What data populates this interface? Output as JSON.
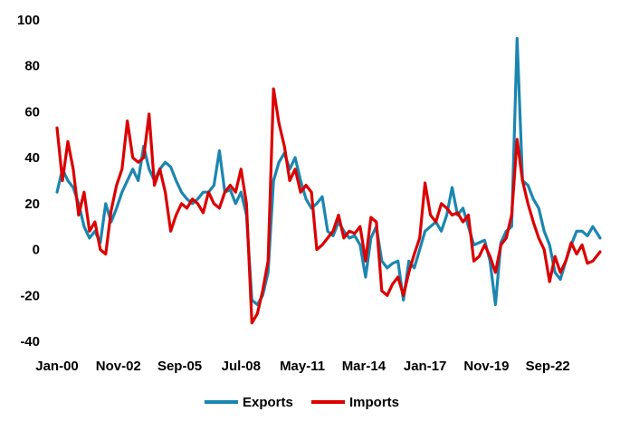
{
  "chart_data": {
    "type": "line",
    "title": "",
    "xlabel": "",
    "ylabel": "",
    "ylim": [
      -40,
      100
    ],
    "yticks": [
      -40,
      -20,
      0,
      20,
      40,
      60,
      80,
      100
    ],
    "x_start": "2000-01",
    "x_end": "2025-02",
    "xtick_labels": [
      "Jan-00",
      "Nov-02",
      "Sep-05",
      "Jul-08",
      "May-11",
      "Mar-14",
      "Jan-17",
      "Nov-19",
      "Sep-22"
    ],
    "grid": false,
    "legend_position": "bottom",
    "series": [
      {
        "name": "Exports",
        "color": "#1a86b0",
        "points": [
          [
            "2000-01",
            25
          ],
          [
            "2000-04",
            35
          ],
          [
            "2000-07",
            30
          ],
          [
            "2000-10",
            27
          ],
          [
            "2001-01",
            20
          ],
          [
            "2001-04",
            10
          ],
          [
            "2001-07",
            5
          ],
          [
            "2001-10",
            8
          ],
          [
            "2002-01",
            3
          ],
          [
            "2002-04",
            20
          ],
          [
            "2002-07",
            12
          ],
          [
            "2002-10",
            18
          ],
          [
            "2003-01",
            25
          ],
          [
            "2003-04",
            30
          ],
          [
            "2003-07",
            35
          ],
          [
            "2003-10",
            30
          ],
          [
            "2004-01",
            45
          ],
          [
            "2004-04",
            35
          ],
          [
            "2004-07",
            30
          ],
          [
            "2004-10",
            35
          ],
          [
            "2005-01",
            38
          ],
          [
            "2005-04",
            36
          ],
          [
            "2005-07",
            30
          ],
          [
            "2005-10",
            25
          ],
          [
            "2006-01",
            22
          ],
          [
            "2006-04",
            20
          ],
          [
            "2006-07",
            22
          ],
          [
            "2006-10",
            25
          ],
          [
            "2007-01",
            25
          ],
          [
            "2007-04",
            28
          ],
          [
            "2007-07",
            43
          ],
          [
            "2007-10",
            25
          ],
          [
            "2008-01",
            26
          ],
          [
            "2008-04",
            20
          ],
          [
            "2008-07",
            25
          ],
          [
            "2008-10",
            15
          ],
          [
            "2009-01",
            -22
          ],
          [
            "2009-04",
            -24
          ],
          [
            "2009-07",
            -20
          ],
          [
            "2009-10",
            -10
          ],
          [
            "2010-01",
            30
          ],
          [
            "2010-04",
            38
          ],
          [
            "2010-07",
            42
          ],
          [
            "2010-10",
            35
          ],
          [
            "2011-01",
            40
          ],
          [
            "2011-04",
            30
          ],
          [
            "2011-07",
            22
          ],
          [
            "2011-10",
            18
          ],
          [
            "2012-01",
            20
          ],
          [
            "2012-04",
            23
          ],
          [
            "2012-07",
            8
          ],
          [
            "2012-10",
            6
          ],
          [
            "2013-01",
            12
          ],
          [
            "2013-04",
            8
          ],
          [
            "2013-07",
            5
          ],
          [
            "2013-10",
            6
          ],
          [
            "2014-01",
            2
          ],
          [
            "2014-04",
            -12
          ],
          [
            "2014-07",
            5
          ],
          [
            "2014-10",
            10
          ],
          [
            "2015-01",
            -5
          ],
          [
            "2015-04",
            -8
          ],
          [
            "2015-07",
            -6
          ],
          [
            "2015-10",
            -5
          ],
          [
            "2016-01",
            -22
          ],
          [
            "2016-04",
            -5
          ],
          [
            "2016-07",
            -8
          ],
          [
            "2016-10",
            0
          ],
          [
            "2017-01",
            8
          ],
          [
            "2017-04",
            10
          ],
          [
            "2017-07",
            12
          ],
          [
            "2017-10",
            8
          ],
          [
            "2018-01",
            15
          ],
          [
            "2018-04",
            27
          ],
          [
            "2018-07",
            15
          ],
          [
            "2018-10",
            18
          ],
          [
            "2019-01",
            10
          ],
          [
            "2019-04",
            2
          ],
          [
            "2019-07",
            3
          ],
          [
            "2019-10",
            4
          ],
          [
            "2020-01",
            -5
          ],
          [
            "2020-04",
            -24
          ],
          [
            "2020-07",
            3
          ],
          [
            "2020-10",
            8
          ],
          [
            "2021-01",
            10
          ],
          [
            "2021-04",
            92
          ],
          [
            "2021-07",
            30
          ],
          [
            "2021-10",
            28
          ],
          [
            "2022-01",
            22
          ],
          [
            "2022-04",
            18
          ],
          [
            "2022-07",
            8
          ],
          [
            "2022-10",
            2
          ],
          [
            "2023-01",
            -10
          ],
          [
            "2023-04",
            -13
          ],
          [
            "2023-07",
            -5
          ],
          [
            "2023-10",
            2
          ],
          [
            "2024-01",
            8
          ],
          [
            "2024-04",
            8
          ],
          [
            "2024-07",
            6
          ],
          [
            "2024-10",
            10
          ],
          [
            "2025-02",
            5
          ]
        ]
      },
      {
        "name": "Imports",
        "color": "#dc0000",
        "points": [
          [
            "2000-01",
            53
          ],
          [
            "2000-04",
            30
          ],
          [
            "2000-07",
            47
          ],
          [
            "2000-10",
            35
          ],
          [
            "2001-01",
            15
          ],
          [
            "2001-04",
            25
          ],
          [
            "2001-07",
            8
          ],
          [
            "2001-10",
            12
          ],
          [
            "2002-01",
            0
          ],
          [
            "2002-04",
            -2
          ],
          [
            "2002-07",
            17
          ],
          [
            "2002-10",
            28
          ],
          [
            "2003-01",
            35
          ],
          [
            "2003-04",
            56
          ],
          [
            "2003-07",
            40
          ],
          [
            "2003-10",
            38
          ],
          [
            "2004-01",
            40
          ],
          [
            "2004-04",
            59
          ],
          [
            "2004-07",
            28
          ],
          [
            "2004-10",
            35
          ],
          [
            "2005-01",
            25
          ],
          [
            "2005-04",
            8
          ],
          [
            "2005-07",
            15
          ],
          [
            "2005-10",
            20
          ],
          [
            "2006-01",
            18
          ],
          [
            "2006-04",
            22
          ],
          [
            "2006-07",
            20
          ],
          [
            "2006-10",
            16
          ],
          [
            "2007-01",
            25
          ],
          [
            "2007-04",
            20
          ],
          [
            "2007-07",
            18
          ],
          [
            "2007-10",
            25
          ],
          [
            "2008-01",
            28
          ],
          [
            "2008-04",
            25
          ],
          [
            "2008-07",
            35
          ],
          [
            "2008-10",
            20
          ],
          [
            "2009-01",
            -32
          ],
          [
            "2009-04",
            -28
          ],
          [
            "2009-07",
            -18
          ],
          [
            "2009-10",
            -5
          ],
          [
            "2010-01",
            70
          ],
          [
            "2010-04",
            55
          ],
          [
            "2010-07",
            45
          ],
          [
            "2010-10",
            30
          ],
          [
            "2011-01",
            35
          ],
          [
            "2011-04",
            25
          ],
          [
            "2011-07",
            28
          ],
          [
            "2011-10",
            25
          ],
          [
            "2012-01",
            0
          ],
          [
            "2012-04",
            2
          ],
          [
            "2012-07",
            5
          ],
          [
            "2012-10",
            8
          ],
          [
            "2013-01",
            15
          ],
          [
            "2013-04",
            5
          ],
          [
            "2013-07",
            8
          ],
          [
            "2013-10",
            7
          ],
          [
            "2014-01",
            10
          ],
          [
            "2014-04",
            -5
          ],
          [
            "2014-07",
            14
          ],
          [
            "2014-10",
            12
          ],
          [
            "2015-01",
            -18
          ],
          [
            "2015-04",
            -20
          ],
          [
            "2015-07",
            -15
          ],
          [
            "2015-10",
            -12
          ],
          [
            "2016-01",
            -20
          ],
          [
            "2016-04",
            -10
          ],
          [
            "2016-07",
            -2
          ],
          [
            "2016-10",
            5
          ],
          [
            "2017-01",
            29
          ],
          [
            "2017-04",
            15
          ],
          [
            "2017-07",
            12
          ],
          [
            "2017-10",
            20
          ],
          [
            "2018-01",
            18
          ],
          [
            "2018-04",
            15
          ],
          [
            "2018-07",
            16
          ],
          [
            "2018-10",
            12
          ],
          [
            "2019-01",
            15
          ],
          [
            "2019-04",
            -5
          ],
          [
            "2019-07",
            -3
          ],
          [
            "2019-10",
            2
          ],
          [
            "2020-01",
            -3
          ],
          [
            "2020-04",
            -10
          ],
          [
            "2020-07",
            2
          ],
          [
            "2020-10",
            5
          ],
          [
            "2021-01",
            15
          ],
          [
            "2021-04",
            48
          ],
          [
            "2021-07",
            30
          ],
          [
            "2021-10",
            20
          ],
          [
            "2022-01",
            12
          ],
          [
            "2022-04",
            5
          ],
          [
            "2022-07",
            0
          ],
          [
            "2022-10",
            -14
          ],
          [
            "2023-01",
            -3
          ],
          [
            "2023-04",
            -10
          ],
          [
            "2023-07",
            -5
          ],
          [
            "2023-10",
            3
          ],
          [
            "2024-01",
            -2
          ],
          [
            "2024-04",
            2
          ],
          [
            "2024-07",
            -6
          ],
          [
            "2024-10",
            -5
          ],
          [
            "2025-02",
            -1
          ]
        ]
      }
    ]
  }
}
